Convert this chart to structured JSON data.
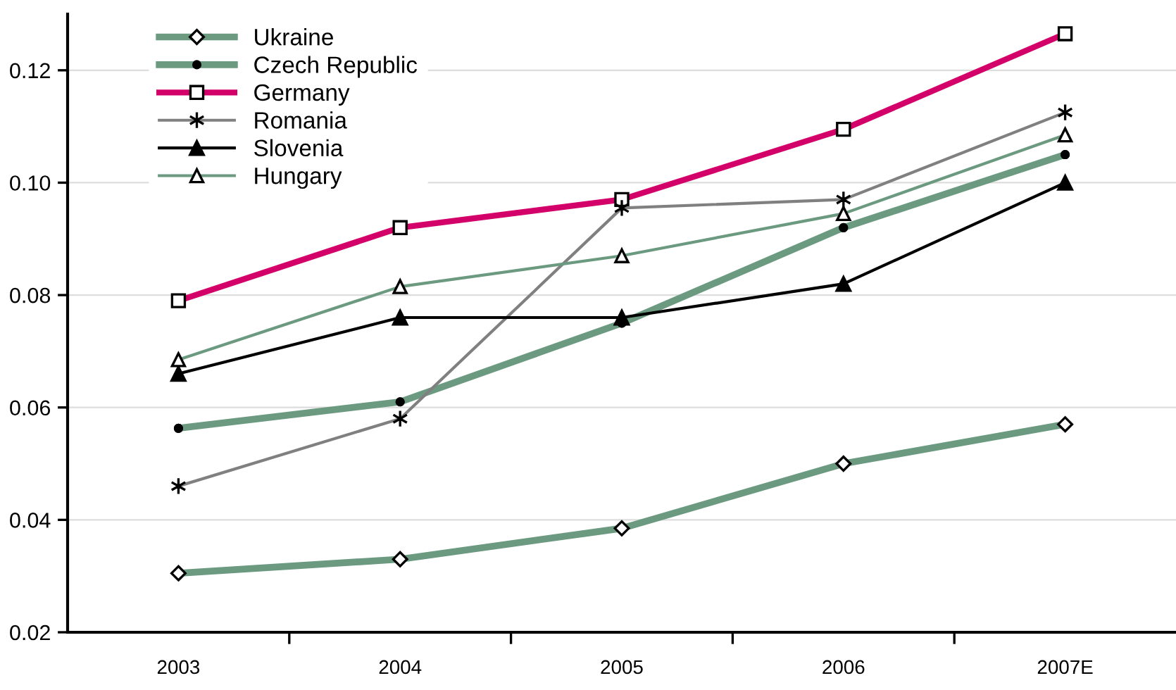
{
  "chart_data": {
    "type": "line",
    "categories": [
      "2003",
      "2004",
      "2005",
      "2006",
      "2007E"
    ],
    "series": [
      {
        "name": "Ukraine",
        "color": "#6b9a80",
        "marker": "diamond",
        "values": [
          0.0305,
          0.033,
          0.0385,
          0.05,
          0.057
        ]
      },
      {
        "name": "Czech Republic",
        "color": "#6b9a80",
        "marker": "circle",
        "values": [
          0.0563,
          0.061,
          0.075,
          0.092,
          0.105
        ]
      },
      {
        "name": "Germany",
        "color": "#d4006a",
        "marker": "square",
        "values": [
          0.079,
          0.092,
          0.097,
          0.1095,
          0.1265
        ]
      },
      {
        "name": "Romania",
        "color": "#808080",
        "marker": "cross",
        "values": [
          0.046,
          0.058,
          0.0955,
          0.097,
          0.1125
        ]
      },
      {
        "name": "Slovenia",
        "color": "#000000",
        "marker": "triangle",
        "values": [
          0.066,
          0.076,
          0.076,
          0.082,
          0.1
        ]
      },
      {
        "name": "Hungary",
        "color": "#6b9a80",
        "marker": "triangle",
        "values": [
          0.0685,
          0.0815,
          0.087,
          0.0945,
          0.1085
        ]
      }
    ],
    "ylim": [
      0.02,
      0.13
    ],
    "yticks": [
      0.02,
      0.04,
      0.06,
      0.08,
      {
        "value": 0.1,
        "label": "0.10"
      },
      0.12
    ],
    "grid": "y",
    "legend": "top left"
  }
}
